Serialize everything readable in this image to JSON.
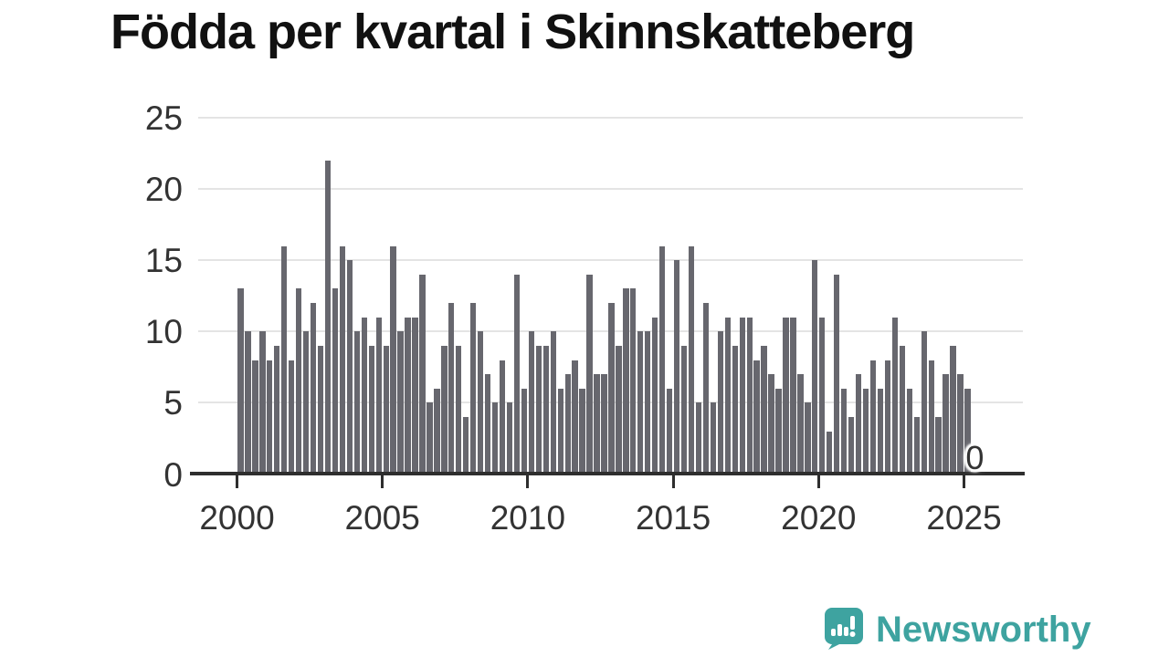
{
  "title": "Födda per kvartal i Skinnskatteberg",
  "chart_data": {
    "type": "bar",
    "title": "Födda per kvartal i Skinnskatteberg",
    "xlabel": "",
    "ylabel": "",
    "x_unit": "quarter",
    "start_year": 2000,
    "values": [
      13,
      10,
      8,
      10,
      8,
      9,
      16,
      8,
      13,
      10,
      12,
      9,
      22,
      13,
      16,
      15,
      10,
      11,
      9,
      11,
      9,
      16,
      10,
      11,
      11,
      14,
      5,
      6,
      9,
      12,
      9,
      4,
      12,
      10,
      7,
      5,
      8,
      5,
      14,
      6,
      10,
      9,
      9,
      10,
      6,
      7,
      8,
      6,
      14,
      7,
      7,
      12,
      9,
      13,
      13,
      10,
      10,
      11,
      16,
      6,
      15,
      9,
      16,
      5,
      12,
      5,
      10,
      11,
      9,
      11,
      11,
      8,
      9,
      7,
      6,
      11,
      11,
      7,
      5,
      15,
      11,
      3,
      14,
      6,
      4,
      7,
      6,
      8,
      6,
      8,
      11,
      9,
      6,
      4,
      10,
      8,
      4,
      7,
      9,
      7,
      6,
      0
    ],
    "ylim": [
      0,
      25
    ],
    "y_ticks": [
      0,
      5,
      10,
      15,
      20,
      25
    ],
    "x_ticks": [
      "2000",
      "2005",
      "2010",
      "2015",
      "2020",
      "2025"
    ],
    "grid": "horizontal",
    "legend": "none",
    "last_value_label": "0",
    "bar_color": "#67676e"
  },
  "colors": {
    "bar": "#67676e",
    "gridline": "#e4e4e4",
    "axis_text": "#333333",
    "axis_line": "#2e2e2e",
    "title_text": "#111111",
    "brand_teal": "#3ea3a0"
  },
  "logo": {
    "text": "Newsworthy",
    "icon": "speech-bubble-bar-chart-icon"
  }
}
